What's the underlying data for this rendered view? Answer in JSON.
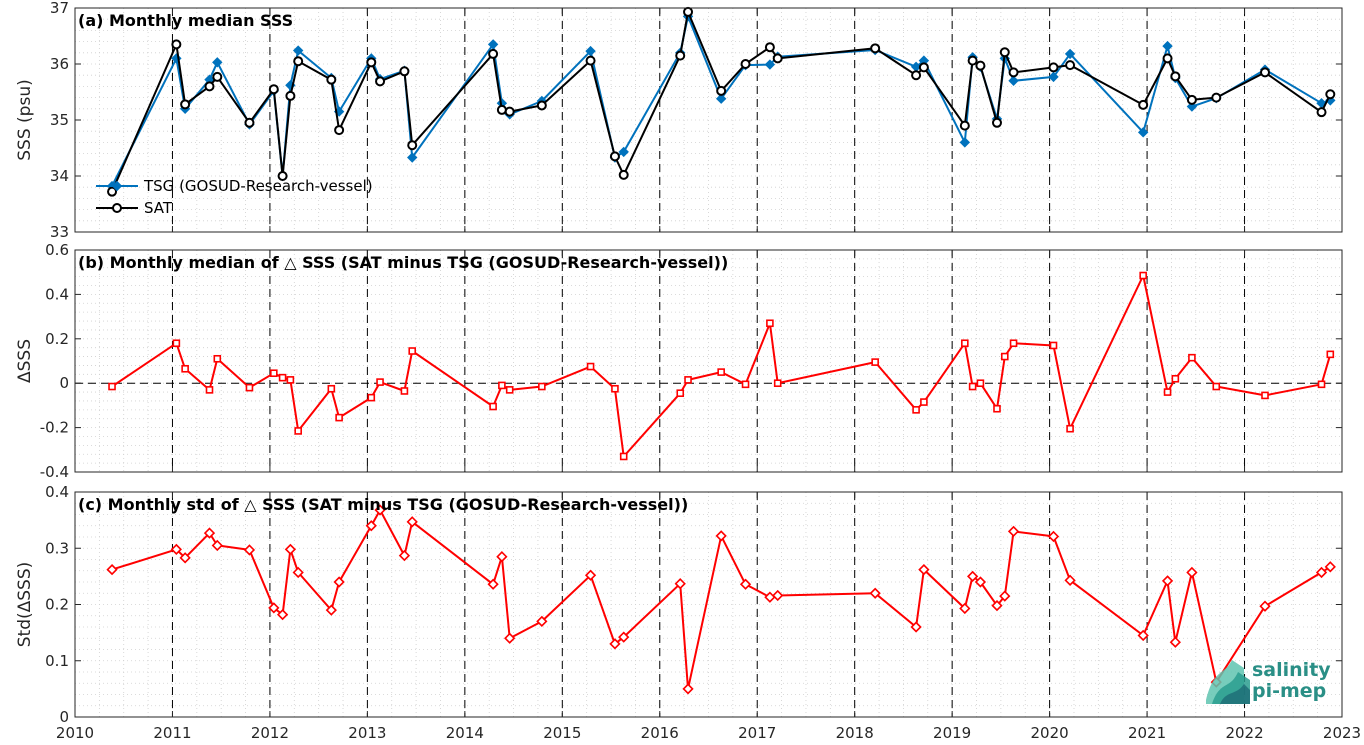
{
  "logo": {
    "line1": "salinity",
    "line2": "pi-mep"
  },
  "chart_data": [
    {
      "type": "line",
      "title": "(a) Monthly median SSS",
      "ylabel": "SSS (psu)",
      "xlim": [
        2010,
        2023
      ],
      "ylim": [
        33,
        37
      ],
      "yticks": [
        33,
        34,
        35,
        36,
        37
      ],
      "legend": [
        "TSG (GOSUD-Research-vessel)",
        "SAT"
      ],
      "legend_position": "bottom-left",
      "grid": "dotted",
      "vertical_dashed_lines": [
        2011,
        2012,
        2013,
        2014,
        2015,
        2016,
        2017,
        2018,
        2019,
        2020,
        2021,
        2022
      ],
      "series": [
        {
          "name": "TSG (GOSUD-Research-vessel)",
          "color": "#0072bd",
          "marker": "diamond",
          "x": [
            2010.38,
            2011.04,
            2011.13,
            2011.38,
            2011.46,
            2011.79,
            2012.04,
            2012.13,
            2012.21,
            2012.29,
            2012.63,
            2012.71,
            2013.04,
            2013.13,
            2013.38,
            2013.46,
            2014.29,
            2014.38,
            2014.46,
            2014.79,
            2015.29,
            2015.54,
            2015.63,
            2016.21,
            2016.29,
            2016.63,
            2016.88,
            2017.13,
            2017.21,
            2018.21,
            2018.63,
            2018.71,
            2019.13,
            2019.21,
            2019.29,
            2019.46,
            2019.54,
            2019.63,
            2020.04,
            2020.21,
            2020.96,
            2021.21,
            2021.29,
            2021.46,
            2021.71,
            2022.21,
            2022.79,
            2022.88
          ],
          "y": [
            33.82,
            36.1,
            35.2,
            35.72,
            36.03,
            34.92,
            35.52,
            34.0,
            35.62,
            36.24,
            35.75,
            35.15,
            36.1,
            35.73,
            35.88,
            34.33,
            36.35,
            35.3,
            35.1,
            35.34,
            36.23,
            34.33,
            34.43,
            36.2,
            36.85,
            35.38,
            35.98,
            35.99,
            36.13,
            36.25,
            35.95,
            36.06,
            34.6,
            36.12,
            35.95,
            35.02,
            36.1,
            35.7,
            35.77,
            36.18,
            34.78,
            36.32,
            35.75,
            35.24,
            35.39,
            35.9,
            35.3,
            35.35
          ]
        },
        {
          "name": "SAT",
          "color": "#000000",
          "marker": "circle",
          "x": [
            2010.38,
            2011.04,
            2011.13,
            2011.38,
            2011.46,
            2011.79,
            2012.04,
            2012.13,
            2012.21,
            2012.29,
            2012.63,
            2012.71,
            2013.04,
            2013.13,
            2013.38,
            2013.46,
            2014.29,
            2014.38,
            2014.46,
            2014.79,
            2015.29,
            2015.54,
            2015.63,
            2016.21,
            2016.29,
            2016.63,
            2016.88,
            2017.13,
            2017.21,
            2018.21,
            2018.63,
            2018.71,
            2019.13,
            2019.21,
            2019.29,
            2019.46,
            2019.54,
            2019.63,
            2020.04,
            2020.21,
            2020.96,
            2021.21,
            2021.29,
            2021.46,
            2021.71,
            2022.21,
            2022.79,
            2022.88
          ],
          "y": [
            33.72,
            36.35,
            35.28,
            35.6,
            35.77,
            34.95,
            35.55,
            34.0,
            35.43,
            36.05,
            35.72,
            34.82,
            36.03,
            35.69,
            35.87,
            34.55,
            36.18,
            35.18,
            35.15,
            35.26,
            36.06,
            34.35,
            34.02,
            36.15,
            36.93,
            35.52,
            36.0,
            36.3,
            36.1,
            36.28,
            35.8,
            35.94,
            34.9,
            36.06,
            35.97,
            34.95,
            36.21,
            35.85,
            35.94,
            35.98,
            35.27,
            36.1,
            35.78,
            35.36,
            35.4,
            35.85,
            35.14,
            35.46
          ]
        }
      ]
    },
    {
      "type": "line",
      "title": "(b) Monthly median of △ SSS (SAT minus TSG (GOSUD-Research-vessel))",
      "ylabel": "ΔSSS",
      "xlim": [
        2010,
        2023
      ],
      "ylim": [
        -0.4,
        0.6
      ],
      "yticks": [
        -0.4,
        -0.2,
        0,
        0.2,
        0.4,
        0.6
      ],
      "ytick_labels": [
        "-0.4",
        "-0.2",
        "0",
        "0.2",
        "0.4",
        "0.6"
      ],
      "grid": "dotted",
      "zero_line": "dashed",
      "vertical_dashed_lines": [
        2011,
        2012,
        2013,
        2014,
        2015,
        2016,
        2017,
        2018,
        2019,
        2020,
        2021,
        2022
      ],
      "series": [
        {
          "color": "#ff0000",
          "marker": "square",
          "x": [
            2010.38,
            2011.04,
            2011.13,
            2011.38,
            2011.46,
            2011.79,
            2012.04,
            2012.13,
            2012.21,
            2012.29,
            2012.63,
            2012.71,
            2013.04,
            2013.13,
            2013.38,
            2013.46,
            2014.29,
            2014.38,
            2014.46,
            2014.79,
            2015.29,
            2015.54,
            2015.63,
            2016.21,
            2016.29,
            2016.63,
            2016.88,
            2017.13,
            2017.21,
            2018.21,
            2018.63,
            2018.71,
            2019.13,
            2019.21,
            2019.29,
            2019.46,
            2019.54,
            2019.63,
            2020.04,
            2020.21,
            2020.96,
            2021.21,
            2021.29,
            2021.46,
            2021.71,
            2022.21,
            2022.79,
            2022.88
          ],
          "y": [
            -0.015,
            0.18,
            0.065,
            -0.03,
            0.11,
            -0.02,
            0.045,
            0.025,
            0.015,
            -0.215,
            -0.025,
            -0.155,
            -0.065,
            0.005,
            -0.035,
            0.145,
            -0.105,
            -0.01,
            -0.03,
            -0.015,
            0.075,
            -0.025,
            -0.33,
            -0.045,
            0.015,
            0.05,
            -0.005,
            0.27,
            0.0,
            0.095,
            -0.12,
            -0.085,
            0.18,
            -0.015,
            0.0,
            -0.115,
            0.12,
            0.18,
            0.17,
            -0.205,
            0.485,
            -0.04,
            0.02,
            0.115,
            -0.015,
            -0.055,
            -0.005,
            0.13
          ]
        }
      ]
    },
    {
      "type": "line",
      "title": "(c) Monthly std of △ SSS (SAT minus TSG (GOSUD-Research-vessel))",
      "ylabel": "Std(ΔSSS)",
      "xlim": [
        2010,
        2023
      ],
      "ylim": [
        0,
        0.4
      ],
      "yticks": [
        0,
        0.1,
        0.2,
        0.3,
        0.4
      ],
      "ytick_labels": [
        "0",
        "0.1",
        "0.2",
        "0.3",
        "0.4"
      ],
      "xticks": [
        2010,
        2011,
        2012,
        2013,
        2014,
        2015,
        2016,
        2017,
        2018,
        2019,
        2020,
        2021,
        2022,
        2023
      ],
      "grid": "dotted",
      "vertical_dashed_lines": [
        2011,
        2012,
        2013,
        2014,
        2015,
        2016,
        2017,
        2018,
        2019,
        2020,
        2021,
        2022
      ],
      "series": [
        {
          "color": "#ff0000",
          "marker": "diamond",
          "x": [
            2010.38,
            2011.04,
            2011.13,
            2011.38,
            2011.46,
            2011.79,
            2012.04,
            2012.13,
            2012.21,
            2012.29,
            2012.63,
            2012.71,
            2013.04,
            2013.13,
            2013.38,
            2013.46,
            2014.29,
            2014.38,
            2014.46,
            2014.79,
            2015.29,
            2015.54,
            2015.63,
            2016.21,
            2016.29,
            2016.63,
            2016.88,
            2017.13,
            2017.21,
            2018.21,
            2018.63,
            2018.71,
            2019.13,
            2019.21,
            2019.29,
            2019.46,
            2019.54,
            2019.63,
            2020.04,
            2020.21,
            2020.96,
            2021.21,
            2021.29,
            2021.46,
            2021.71,
            2022.21,
            2022.79,
            2022.88
          ],
          "y": [
            0.262,
            0.298,
            0.283,
            0.327,
            0.305,
            0.297,
            0.194,
            0.182,
            0.298,
            0.257,
            0.19,
            0.24,
            0.34,
            0.368,
            0.287,
            0.347,
            0.236,
            0.285,
            0.14,
            0.17,
            0.252,
            0.13,
            0.142,
            0.237,
            0.05,
            0.322,
            0.236,
            0.213,
            0.216,
            0.22,
            0.16,
            0.262,
            0.193,
            0.25,
            0.24,
            0.198,
            0.215,
            0.33,
            0.321,
            0.243,
            0.145,
            0.242,
            0.133,
            0.257,
            0.062,
            0.197,
            0.257,
            0.267
          ]
        }
      ]
    }
  ]
}
